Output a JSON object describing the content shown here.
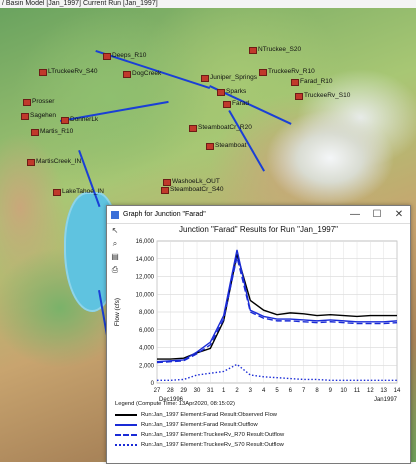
{
  "background_window": {
    "title": "/ Basin Model [Jan_1997] Current Run [Jan_1997]"
  },
  "map_labels": [
    {
      "text": "Deeps_R10"
    },
    {
      "text": "NTruckee_S20"
    },
    {
      "text": "LTruckeeRv_S40"
    },
    {
      "text": "DogCreek"
    },
    {
      "text": "Juniper_Springs"
    },
    {
      "text": "Martis_R10"
    },
    {
      "text": "Prosser"
    },
    {
      "text": "LakeTahoe_IN"
    },
    {
      "text": "Sagehen"
    },
    {
      "text": "Farad"
    },
    {
      "text": "Steamboat"
    },
    {
      "text": "SteamboatCr_R20"
    },
    {
      "text": "WashoeLk_OUT"
    },
    {
      "text": "SteamboatCr_S40"
    },
    {
      "text": "TruckeeRv_S10"
    },
    {
      "text": "DonnerLk"
    },
    {
      "text": "MartisCreek_IN"
    },
    {
      "text": "TruckeeRv_R10"
    },
    {
      "text": "Sparks"
    },
    {
      "text": "Farad_R10"
    }
  ],
  "graph_window": {
    "title": "Graph for Junction \"Farad\"",
    "buttons": {
      "minimize": "—",
      "maximize": "☐",
      "close": "✕"
    },
    "chart_heading": "Junction \"Farad\" Results for Run \"Jan_1997\""
  },
  "legend": {
    "header": "Legend (Compute Time: 13Apr2020, 08:15:02)",
    "items": [
      {
        "label": "Run:Jan_1997 Element:Farad Result:Observed Flow"
      },
      {
        "label": "Run:Jan_1997 Element:Farad Result:Outflow"
      },
      {
        "label": "Run:Jan_1997 Element:TruckeeRv_R70 Result:Outflow"
      },
      {
        "label": "Run:Jan_1997 Element:TruckeeRv_S70 Result:Outflow"
      }
    ]
  },
  "chart_data": {
    "type": "line",
    "ylabel": "Flow (cfs)",
    "ylim": [
      0,
      16000
    ],
    "y_ticks": [
      "0",
      "2,000",
      "4,000",
      "6,000",
      "8,000",
      "10,000",
      "12,000",
      "14,000",
      "16,000"
    ],
    "x_ticks": [
      "27",
      "28",
      "29",
      "30",
      "31",
      "1",
      "2",
      "3",
      "4",
      "5",
      "6",
      "7",
      "8",
      "9",
      "10",
      "11",
      "12",
      "13",
      "14"
    ],
    "x_sublabels": [
      "Dec1996",
      "Jan1997"
    ],
    "x": [
      27,
      28,
      29,
      30,
      31,
      32,
      33,
      34,
      35,
      36,
      37,
      38,
      39,
      40,
      41,
      42,
      43,
      44,
      45
    ],
    "series": [
      {
        "name": "Run:Jan_1997 Element:Farad Result:Observed Flow",
        "color": "#000000",
        "dash": "solid",
        "values": [
          2700,
          2700,
          2800,
          3400,
          3900,
          7000,
          14500,
          9300,
          8200,
          7700,
          7900,
          7800,
          7600,
          7700,
          7600,
          7500,
          7600,
          7600,
          7600
        ]
      },
      {
        "name": "Run:Jan_1997 Element:Farad Result:Outflow",
        "color": "#1a2bd6",
        "dash": "solid",
        "values": [
          2400,
          2500,
          2600,
          3500,
          4600,
          7600,
          15000,
          8200,
          7500,
          7200,
          7200,
          7100,
          7000,
          7100,
          7000,
          6900,
          6900,
          6900,
          7000
        ]
      },
      {
        "name": "Run:Jan_1997 Element:TruckeeRv_R70 Result:Outflow",
        "color": "#1a2bd6",
        "dash": "long",
        "values": [
          2300,
          2400,
          2500,
          3300,
          4300,
          7200,
          14200,
          8000,
          7300,
          7000,
          7000,
          6900,
          6800,
          6900,
          6800,
          6700,
          6700,
          6700,
          6800
        ]
      },
      {
        "name": "Run:Jan_1997 Element:TruckeeRv_S70 Result:Outflow",
        "color": "#1a2bd6",
        "dash": "dot",
        "values": [
          300,
          300,
          400,
          900,
          1100,
          1300,
          2100,
          900,
          700,
          600,
          500,
          400,
          400,
          300,
          300,
          300,
          300,
          300,
          300
        ]
      }
    ]
  }
}
